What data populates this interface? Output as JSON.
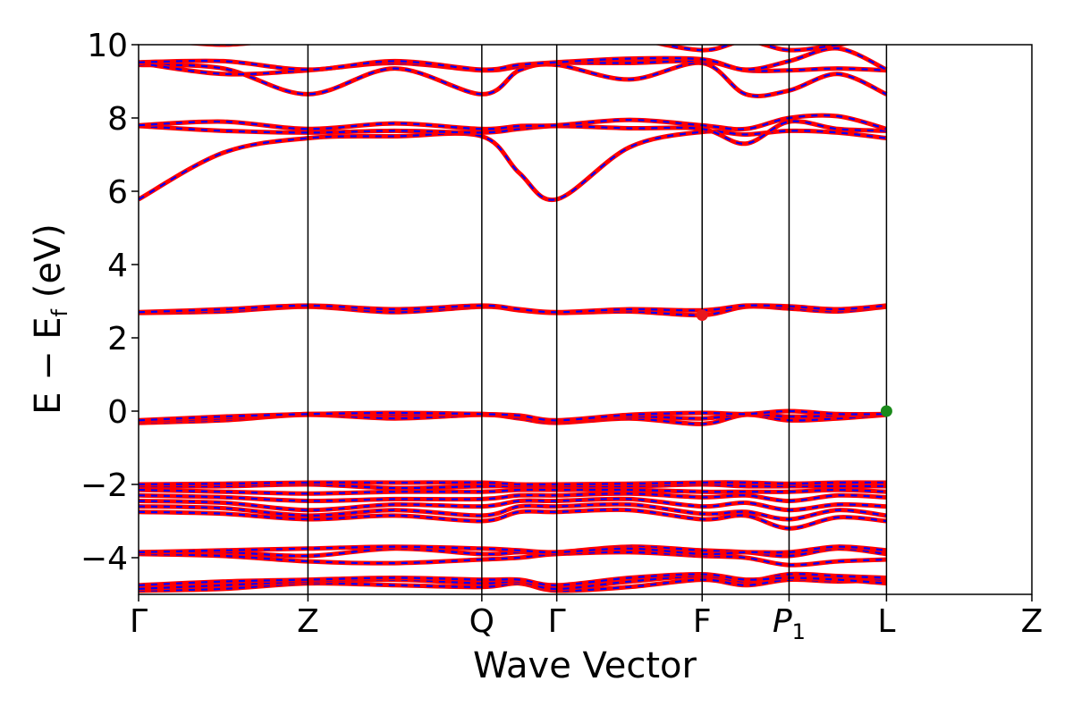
{
  "chart_data": {
    "type": "line",
    "xlabel": "Wave Vector",
    "ylabel": {
      "main": "E − E",
      "subscript": "f",
      "unit": " (eV)"
    },
    "ylim": [
      -5,
      10
    ],
    "yticks": [
      10,
      8,
      6,
      4,
      2,
      0,
      -2,
      -4
    ],
    "ytick_labels": [
      "10",
      "8",
      "6",
      "4",
      "2",
      "0",
      "−2",
      "−4"
    ],
    "kpoints": [
      {
        "label": "Γ",
        "x": 0.0
      },
      {
        "label": "Z",
        "x": 1.13
      },
      {
        "label": "Q",
        "x": 2.29
      },
      {
        "label": "Γ",
        "x": 2.79
      },
      {
        "label": "F",
        "x": 3.76
      },
      {
        "label": "P",
        "subscript": "1",
        "italic": true,
        "x": 4.34
      },
      {
        "label": "L",
        "x": 4.99
      },
      {
        "label": "Z",
        "x": 5.96
      }
    ],
    "grid": false,
    "colors": {
      "band_solid": "#ff0000",
      "band_dashed": "#0000ff",
      "cbm_marker": "#e8171d",
      "vbm_marker": "#1a8a1a",
      "kpath_line": "#000000"
    },
    "markers": [
      {
        "name": "cbm",
        "x": 3.76,
        "y": 2.62
      },
      {
        "name": "vbm",
        "x": 4.99,
        "y": 0.0
      }
    ],
    "bands": [
      {
        "name": "b01",
        "y": [
          -4.9,
          -4.85,
          -4.7,
          -4.75,
          -4.8,
          -4.7,
          -4.9,
          -4.8,
          -4.6,
          -4.75,
          -4.6,
          -4.65,
          -4.6
        ]
      },
      {
        "name": "b02",
        "y": [
          -4.85,
          -4.75,
          -4.65,
          -4.6,
          -4.7,
          -4.65,
          -4.85,
          -4.65,
          -4.5,
          -4.65,
          -4.45,
          -4.5,
          -4.55
        ]
      },
      {
        "name": "b03",
        "y": [
          -4.75,
          -4.65,
          -4.6,
          -4.55,
          -4.6,
          -4.6,
          -4.75,
          -4.55,
          -4.45,
          -4.6,
          -4.55,
          -4.6,
          -4.7
        ]
      },
      {
        "name": "b04",
        "y": [
          -3.9,
          -3.95,
          -4.1,
          -4.15,
          -4.05,
          -4.0,
          -3.9,
          -3.85,
          -3.95,
          -4.0,
          -4.2,
          -4.1,
          -4.05
        ]
      },
      {
        "name": "b05",
        "y": [
          -3.85,
          -3.85,
          -3.95,
          -3.75,
          -3.9,
          -3.85,
          -3.85,
          -3.7,
          -3.8,
          -3.85,
          -3.95,
          -3.75,
          -3.9
        ]
      },
      {
        "name": "b06",
        "y": [
          -3.85,
          -3.8,
          -3.75,
          -3.7,
          -3.75,
          -3.8,
          -3.85,
          -3.75,
          -3.9,
          -3.85,
          -3.85,
          -3.7,
          -3.8
        ]
      },
      {
        "name": "b07",
        "y": [
          -2.75,
          -2.8,
          -2.95,
          -2.85,
          -3.0,
          -2.75,
          -2.75,
          -2.7,
          -2.95,
          -2.85,
          -3.2,
          -2.9,
          -3.0
        ]
      },
      {
        "name": "b08",
        "y": [
          -2.6,
          -2.65,
          -2.85,
          -2.7,
          -2.85,
          -2.6,
          -2.6,
          -2.55,
          -2.8,
          -2.75,
          -2.95,
          -2.7,
          -2.85
        ]
      },
      {
        "name": "b09",
        "y": [
          -2.45,
          -2.5,
          -2.7,
          -2.55,
          -2.6,
          -2.45,
          -2.45,
          -2.4,
          -2.6,
          -2.5,
          -2.7,
          -2.55,
          -2.6
        ]
      },
      {
        "name": "b10",
        "y": [
          -2.3,
          -2.35,
          -2.45,
          -2.4,
          -2.4,
          -2.3,
          -2.3,
          -2.25,
          -2.35,
          -2.3,
          -2.45,
          -2.3,
          -2.35
        ]
      },
      {
        "name": "b11",
        "y": [
          -2.15,
          -2.2,
          -2.25,
          -2.2,
          -2.2,
          -2.15,
          -2.15,
          -2.15,
          -2.2,
          -2.2,
          -2.2,
          -2.15,
          -2.2
        ]
      },
      {
        "name": "b12",
        "y": [
          -2.05,
          -2.05,
          -2.0,
          -2.1,
          -2.05,
          -2.05,
          -2.05,
          -2.05,
          -2.0,
          -2.05,
          -2.05,
          -2.05,
          -2.05
        ]
      },
      {
        "name": "b13",
        "y": [
          -2.0,
          -1.98,
          -1.95,
          -1.95,
          -1.95,
          -2.0,
          -2.0,
          -1.98,
          -1.95,
          -1.95,
          -1.98,
          -1.95,
          -1.95
        ]
      },
      {
        "name": "b14",
        "y": [
          -0.32,
          -0.25,
          -0.1,
          -0.2,
          -0.1,
          -0.2,
          -0.32,
          -0.2,
          -0.35,
          -0.1,
          -0.25,
          -0.2,
          -0.1
        ]
      },
      {
        "name": "b15",
        "y": [
          -0.28,
          -0.2,
          -0.08,
          -0.1,
          -0.08,
          -0.15,
          -0.28,
          -0.15,
          -0.2,
          -0.08,
          -0.15,
          -0.12,
          -0.08
        ]
      },
      {
        "name": "b16",
        "y": [
          -0.25,
          -0.15,
          -0.08,
          -0.05,
          -0.08,
          -0.12,
          -0.25,
          -0.1,
          -0.05,
          -0.08,
          0.0,
          -0.08,
          -0.08
        ]
      },
      {
        "name": "b17",
        "y": [
          2.68,
          2.72,
          2.85,
          2.7,
          2.85,
          2.75,
          2.68,
          2.72,
          2.62,
          2.85,
          2.8,
          2.72,
          2.85
        ]
      },
      {
        "name": "b18",
        "y": [
          2.7,
          2.78,
          2.88,
          2.78,
          2.88,
          2.78,
          2.7,
          2.78,
          2.75,
          2.88,
          2.86,
          2.78,
          2.88
        ]
      },
      {
        "name": "b19",
        "y": [
          5.78,
          7.05,
          7.45,
          7.5,
          7.5,
          6.5,
          5.78,
          7.2,
          7.62,
          7.55,
          7.65,
          7.6,
          7.45
        ]
      },
      {
        "name": "b20",
        "y": [
          7.78,
          7.65,
          7.6,
          7.65,
          7.6,
          7.7,
          7.78,
          7.72,
          7.7,
          7.3,
          7.9,
          7.7,
          7.65
        ]
      },
      {
        "name": "b21",
        "y": [
          7.8,
          7.9,
          7.7,
          7.85,
          7.7,
          7.78,
          7.8,
          7.95,
          7.8,
          7.7,
          8.0,
          8.05,
          7.7
        ]
      },
      {
        "name": "b22",
        "y": [
          9.45,
          9.35,
          8.65,
          9.35,
          8.65,
          9.3,
          9.45,
          9.05,
          9.5,
          8.65,
          8.75,
          9.2,
          8.65
        ]
      },
      {
        "name": "b23",
        "y": [
          9.5,
          9.2,
          9.3,
          9.5,
          9.3,
          9.4,
          9.5,
          9.5,
          9.55,
          9.3,
          9.3,
          9.35,
          9.3
        ]
      },
      {
        "name": "b24",
        "y": [
          9.52,
          9.55,
          9.32,
          9.55,
          9.32,
          9.45,
          9.52,
          9.62,
          9.6,
          9.32,
          9.55,
          9.9,
          9.32
        ]
      },
      {
        "name": "b25",
        "y": [
          10.2,
          10.0,
          10.2,
          10.1,
          10.2,
          10.4,
          10.6,
          10.2,
          9.85,
          10.1,
          9.85,
          10.0,
          10.2
        ]
      }
    ]
  }
}
